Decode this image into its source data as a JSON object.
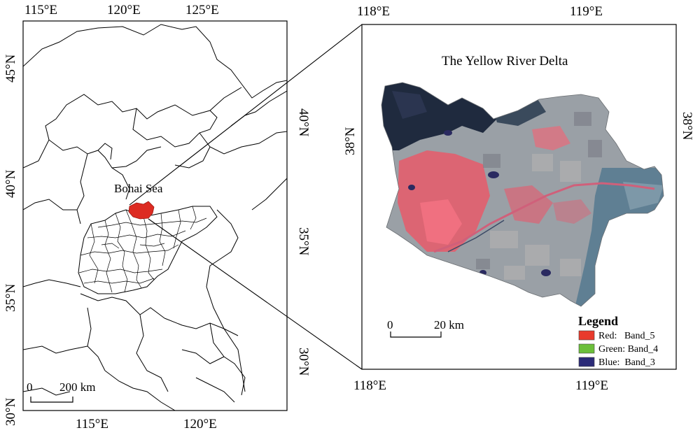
{
  "left_map": {
    "top_ticks": [
      "115°E",
      "120°E",
      "125°E"
    ],
    "bottom_ticks": [
      "115°E",
      "120°E"
    ],
    "left_ticks": [
      "45°N",
      "40°N",
      "35°N",
      "30°N"
    ],
    "right_ticks": [
      "40°N",
      "35°N",
      "30°N"
    ],
    "sea_label": "Bohai Sea",
    "scale_zero": "0",
    "scale_label": "200 km"
  },
  "right_map": {
    "title": "The Yellow River Delta",
    "top_ticks": [
      "118°E",
      "119°E"
    ],
    "bottom_ticks": [
      "118°E",
      "119°E"
    ],
    "left_ticks": [
      "38°N"
    ],
    "right_ticks": [
      "38°N"
    ],
    "scale_zero": "0",
    "scale_label": "20 km"
  },
  "legend": {
    "title": "Legend",
    "items": [
      {
        "label": "Red:   Band_5",
        "color": "#e83a2c"
      },
      {
        "label": "Green: Band_4",
        "color": "#6bbf3a"
      },
      {
        "label": "Blue:  Band_3",
        "color": "#2b2a78"
      }
    ]
  },
  "colors": {
    "study_area": "#dd2b22",
    "delta_base": "#9aa0a6",
    "delta_urban": "#e85a6a",
    "delta_water": "#1f2a3e",
    "delta_sea_edge": "#5f7f93"
  }
}
